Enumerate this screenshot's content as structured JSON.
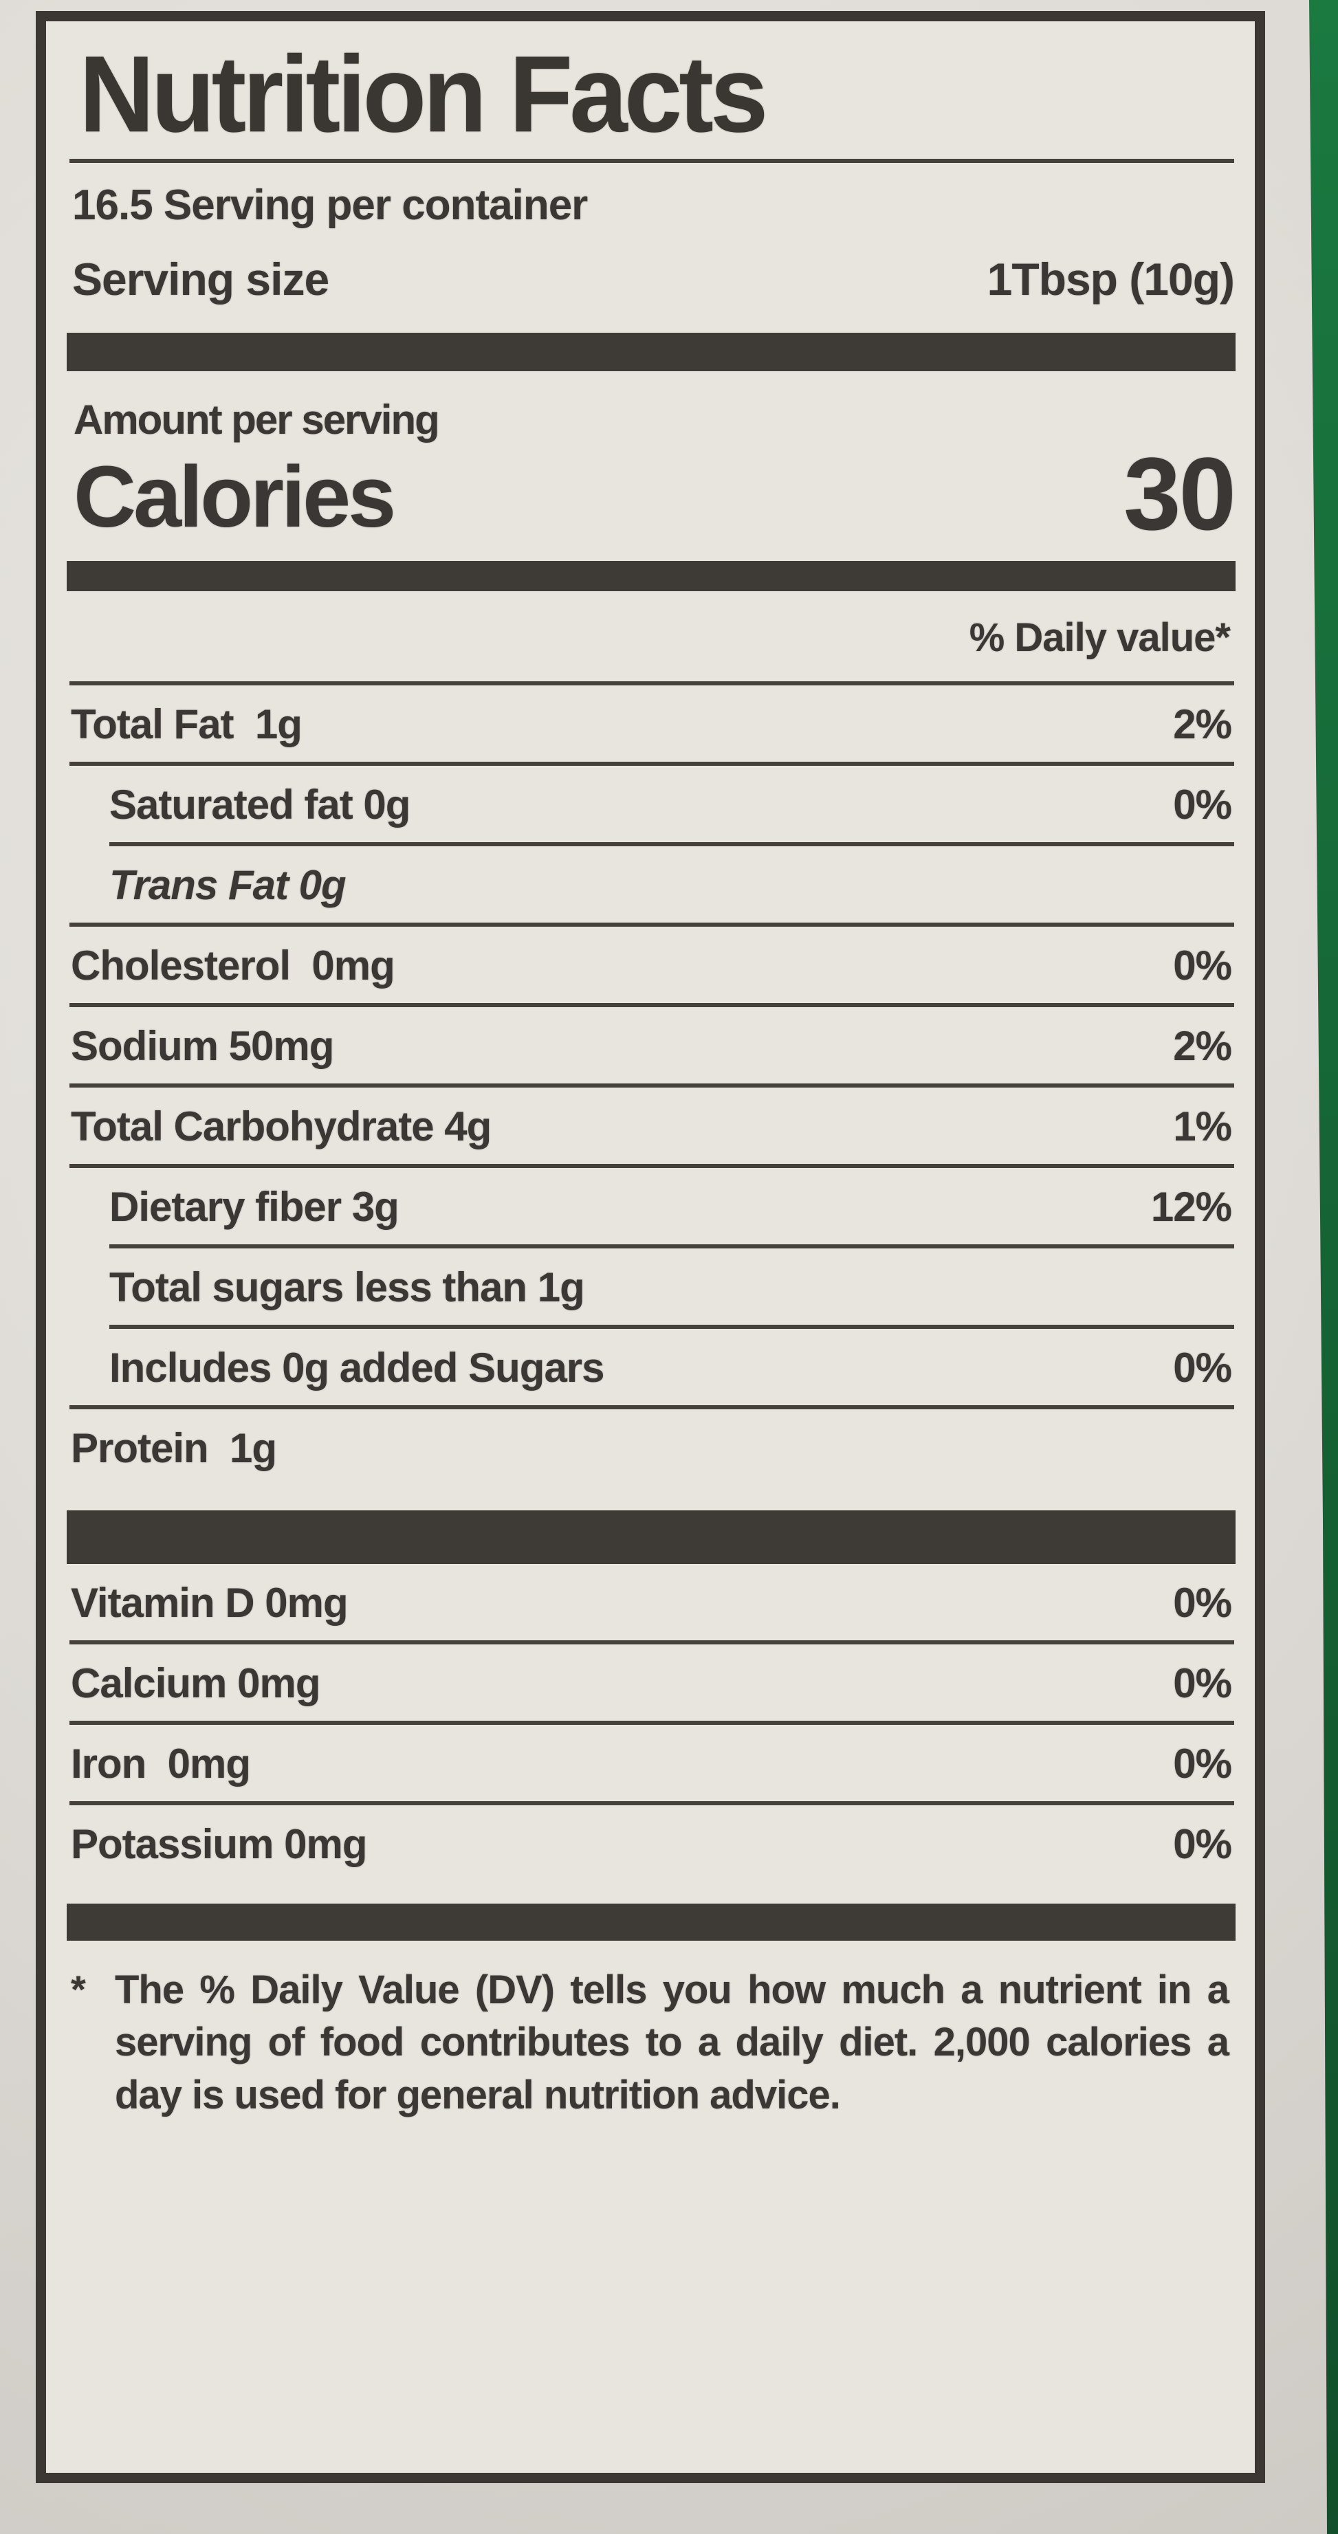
{
  "label": {
    "title": "Nutrition Facts",
    "servings_per_container": "16.5 Serving per container",
    "serving_size_label": "Serving size",
    "serving_size_value": "1Tbsp (10g)",
    "amount_per_serving": "Amount per serving",
    "calories_label": "Calories",
    "calories_value": "30",
    "daily_value_header": "% Daily value*",
    "nutrients": [
      {
        "name": "Total Fat",
        "amount": "1g",
        "dv": "2%"
      },
      {
        "name": "Saturated fat",
        "amount": "0g",
        "dv": "0%"
      },
      {
        "name": "Trans Fat",
        "amount": "0g",
        "dv": ""
      },
      {
        "name": "Cholesterol",
        "amount": "0mg",
        "dv": "0%"
      },
      {
        "name": "Sodium",
        "amount": "50mg",
        "dv": "2%"
      },
      {
        "name": "Total Carbohydrate",
        "amount": "4g",
        "dv": "1%"
      },
      {
        "name": "Dietary fiber",
        "amount": "3g",
        "dv": "12%"
      },
      {
        "name": "Total sugars less than",
        "amount": "1g",
        "dv": ""
      },
      {
        "name": "Includes 0g added Sugars",
        "amount": "",
        "dv": "0%"
      },
      {
        "name": "Protein",
        "amount": "1g",
        "dv": ""
      }
    ],
    "micronutrients": [
      {
        "name": "Vitamin D",
        "amount": "0mg",
        "dv": "0%"
      },
      {
        "name": "Calcium",
        "amount": "0mg",
        "dv": "0%"
      },
      {
        "name": "Iron",
        "amount": "0mg",
        "dv": "0%"
      },
      {
        "name": "Potassium",
        "amount": "0mg",
        "dv": "0%"
      }
    ],
    "footnote_marker": "*",
    "footnote_text": "The % Daily Value (DV) tells you how much a nutrient in a serving of food contributes to a daily diet.  2,000 calories a day is used for general nutrition advice."
  },
  "colors": {
    "label_background": "#e8e4de",
    "ink": "#3b3734",
    "package_green": "#156434"
  }
}
